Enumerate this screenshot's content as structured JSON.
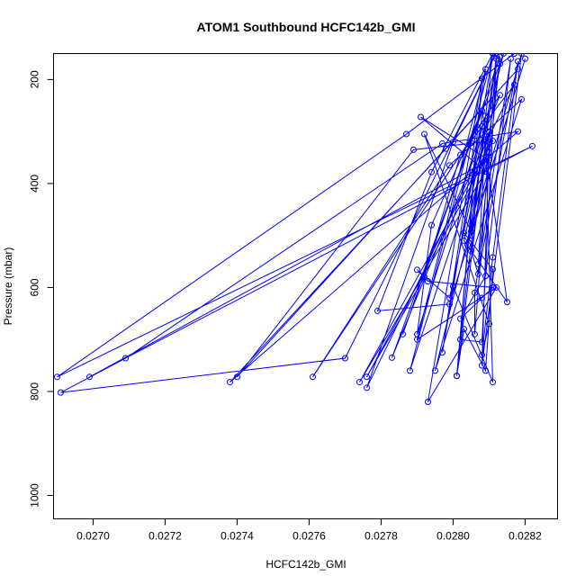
{
  "chart_data": {
    "type": "line",
    "title": "ATOM1 Southbound HCFC142b_GMI",
    "xlabel": "HCFC142b_GMI",
    "ylabel": "Pressure (mbar)",
    "xlim": [
      0.02689,
      0.02829
    ],
    "ylim": [
      1045,
      150
    ],
    "y_reversed": true,
    "grid": false,
    "x_ticks": [
      0.027,
      0.0272,
      0.0274,
      0.0276,
      0.0278,
      0.028,
      0.0282
    ],
    "x_tick_labels": [
      "0.0270",
      "0.0272",
      "0.0274",
      "0.0276",
      "0.0278",
      "0.0280",
      "0.0282"
    ],
    "y_ticks": [
      200,
      400,
      600,
      800,
      1000
    ],
    "y_tick_labels": [
      "200",
      "400",
      "600",
      "800",
      "1000"
    ],
    "colors": {
      "series": "#0000ff",
      "axis": "#000000"
    },
    "series": [
      {
        "marker": "open-circle",
        "points": [
          [
            0.02817,
            150
          ],
          [
            0.02787,
            305
          ],
          [
            0.0269,
            772
          ],
          [
            0.02822,
            328
          ],
          [
            0.02699,
            772
          ],
          [
            0.0281,
            355
          ],
          [
            0.02791,
            272
          ],
          [
            0.02809,
            377
          ],
          [
            0.02774,
            782
          ],
          [
            0.02811,
            318
          ],
          [
            0.02789,
            335
          ],
          [
            0.0274,
            772
          ],
          [
            0.02818,
            180
          ],
          [
            0.02798,
            333
          ],
          [
            0.02738,
            782
          ],
          [
            0.02818,
            300
          ],
          [
            0.02797,
            323
          ],
          [
            0.02709,
            736
          ],
          [
            0.02691,
            802
          ],
          [
            0.0277,
            736
          ],
          [
            0.02812,
            148
          ],
          [
            0.028,
            320
          ],
          [
            0.02776,
            793
          ],
          [
            0.02817,
            210
          ],
          [
            0.02802,
            345
          ],
          [
            0.02792,
            580
          ],
          [
            0.02776,
            772
          ],
          [
            0.0281,
            340
          ],
          [
            0.02795,
            760
          ],
          [
            0.02819,
            238
          ],
          [
            0.02799,
            365
          ],
          [
            0.02761,
            772
          ],
          [
            0.02813,
            230
          ],
          [
            0.02783,
            735
          ],
          [
            0.02814,
            150
          ],
          [
            0.02806,
            375
          ],
          [
            0.02801,
            770
          ],
          [
            0.02808,
            198
          ],
          [
            0.02805,
            322
          ],
          [
            0.02793,
            820
          ],
          [
            0.02812,
            600
          ],
          [
            0.0279,
            700
          ],
          [
            0.02809,
            180
          ],
          [
            0.02797,
            725
          ],
          [
            0.02811,
            150
          ],
          [
            0.02794,
            378
          ],
          [
            0.02779,
            645
          ],
          [
            0.02799,
            632
          ],
          [
            0.0282,
            160
          ],
          [
            0.02805,
            500
          ],
          [
            0.02809,
            270
          ],
          [
            0.0279,
            690
          ],
          [
            0.02794,
            480
          ],
          [
            0.02808,
            260
          ],
          [
            0.02786,
            690
          ],
          [
            0.02813,
            156
          ],
          [
            0.02807,
            555
          ],
          [
            0.02809,
            310
          ],
          [
            0.02811,
            782
          ],
          [
            0.028,
            598
          ],
          [
            0.02808,
            290
          ],
          [
            0.02815,
            628
          ],
          [
            0.02803,
            510
          ],
          [
            0.0281,
            300
          ],
          [
            0.02788,
            760
          ],
          [
            0.02811,
            150
          ],
          [
            0.02802,
            700
          ],
          [
            0.02808,
            705
          ],
          [
            0.02812,
            160
          ],
          [
            0.02804,
            518
          ],
          [
            0.0281,
            320
          ],
          [
            0.02808,
            750
          ],
          [
            0.02819,
            150
          ],
          [
            0.02805,
            492
          ],
          [
            0.02792,
            305
          ],
          [
            0.0281,
            670
          ],
          [
            0.02808,
            730
          ],
          [
            0.02811,
            542
          ],
          [
            0.02818,
            165
          ],
          [
            0.02807,
            574
          ],
          [
            0.02805,
            530
          ],
          [
            0.02813,
            170
          ],
          [
            0.02799,
            620
          ],
          [
            0.0279,
            566
          ],
          [
            0.02793,
            588
          ],
          [
            0.02811,
            600
          ],
          [
            0.02808,
            620
          ],
          [
            0.02802,
            660
          ],
          [
            0.02809,
            578
          ],
          [
            0.02816,
            160
          ],
          [
            0.02806,
            610
          ],
          [
            0.02806,
            690
          ],
          [
            0.02812,
            155
          ],
          [
            0.02801,
            770
          ],
          [
            0.02803,
            680
          ],
          [
            0.02809,
            760
          ],
          [
            0.02811,
            565
          ],
          [
            0.02803,
            495
          ]
        ]
      }
    ]
  }
}
